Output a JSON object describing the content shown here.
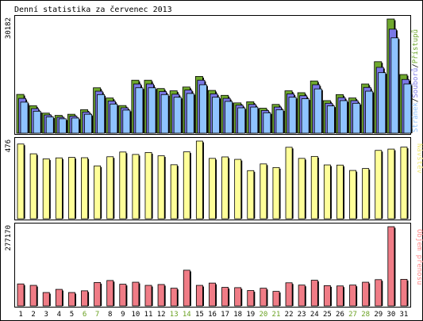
{
  "chart_data": {
    "type": "bar",
    "title": "Denní statistika za červenec 2013",
    "categories": [
      "1",
      "2",
      "3",
      "4",
      "5",
      "6",
      "7",
      "8",
      "9",
      "10",
      "11",
      "12",
      "13",
      "14",
      "15",
      "16",
      "17",
      "18",
      "19",
      "20",
      "21",
      "22",
      "23",
      "24",
      "25",
      "26",
      "27",
      "28",
      "29",
      "30",
      "31"
    ],
    "weekend_days": [
      "6",
      "7",
      "13",
      "14",
      "20",
      "21",
      "27",
      "28"
    ],
    "weekend_color": "#6aa121",
    "legend_top": {
      "strings": [
        "Stránek",
        "Souborů",
        "Přístupů"
      ],
      "separator": "/",
      "colors": [
        "#8fc3ff",
        "#7a78e6",
        "#6fa82e"
      ]
    },
    "panels": [
      {
        "id": "pages-files-hits",
        "ymax_label": "30182",
        "ymax": 30182,
        "series": [
          {
            "name": "Přístupů",
            "color": "#6fa82e",
            "values": [
              10250,
              7250,
              5300,
              4700,
              5000,
              6200,
              12000,
              9300,
              7300,
              14000,
              14000,
              11800,
              11200,
              12200,
              15000,
              11300,
              10000,
              8000,
              8300,
              6600,
              7600,
              11200,
              10700,
              13800,
              8600,
              10200,
              9300,
              13000,
              18900,
              30182,
              15500
            ]
          },
          {
            "name": "Souborů",
            "color": "#7a78e6",
            "values": [
              9200,
              6500,
              4800,
              4200,
              4500,
              5600,
              11100,
              8500,
              6700,
              13000,
              13000,
              11000,
              10300,
              11400,
              14000,
              10400,
              9200,
              7400,
              7600,
              6000,
              6900,
              10400,
              9900,
              12800,
              7900,
              9400,
              8600,
              12100,
              17400,
              27500,
              14200
            ]
          },
          {
            "name": "Stránek",
            "color": "#8fc3ff",
            "values": [
              8200,
              5800,
              4300,
              3800,
              4000,
              5000,
              10200,
              7700,
              6100,
              12000,
              12000,
              10200,
              9500,
              10500,
              12800,
              9500,
              8400,
              6700,
              6900,
              5400,
              6200,
              9500,
              9100,
              11700,
              7200,
              8600,
              7900,
              11100,
              16000,
              25200,
              13000
            ]
          }
        ]
      },
      {
        "id": "visits",
        "ymax_label": "476",
        "ymax": 476,
        "legend": {
          "text": "Návštěv",
          "color": "#f0e878"
        },
        "series": [
          {
            "name": "Návštěv",
            "color": "#ffff99",
            "values": [
              458,
              398,
              367,
              373,
              376,
              374,
              324,
              380,
              409,
              394,
              406,
              386,
              331,
              410,
              476,
              370,
              379,
              364,
              295,
              336,
              314,
              438,
              370,
              382,
              330,
              329,
              296,
              308,
              419,
              427,
              439
            ]
          }
        ]
      },
      {
        "id": "transfer",
        "ymax_label": "277170",
        "ymax": 277170,
        "legend": {
          "text": "Objem přenosu",
          "color": "#ff8a8a"
        },
        "series": [
          {
            "name": "Objem přenosu",
            "color": "#f07c86",
            "values": [
              77000,
              72000,
              47000,
              58000,
              47000,
              53000,
              82000,
              89000,
              76000,
              83000,
              72000,
              75000,
              62000,
              125000,
              72000,
              80000,
              65000,
              64000,
              54000,
              62000,
              51000,
              81000,
              73000,
              90000,
              71000,
              70000,
              73000,
              83000,
              92000,
              277170,
              93000
            ]
          }
        ]
      }
    ]
  }
}
